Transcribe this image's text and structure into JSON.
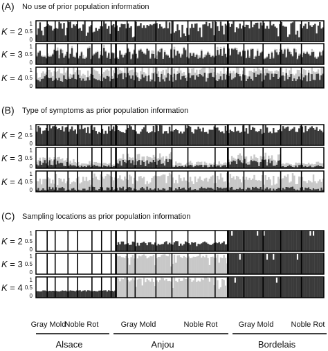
{
  "chart_data": {
    "type": "bar",
    "stacked": true,
    "colors": {
      "dark": "#3a3a3a",
      "light": "#c8c8c8",
      "white": "#ffffff",
      "frame": "#000000"
    },
    "ytick_labels": [
      "1",
      "0.5",
      "0"
    ],
    "k_prefix": "K",
    "group_labels": [
      "Gray Mold",
      "Noble Rot",
      "Gray Mold",
      "Noble Rot",
      "Gray Mold",
      "Noble Rot"
    ],
    "region_labels": [
      "Alsace",
      "Anjou",
      "Bordelais"
    ],
    "panels": [
      {
        "label": "(A)",
        "title": "No use of prior population information",
        "rows": [
          {
            "k": "= 2",
            "pattern": "mixed2",
            "seed": 11
          },
          {
            "k": "= 3",
            "pattern": "mixed3",
            "seed": 23
          },
          {
            "k": "= 4",
            "pattern": "mixed4",
            "seed": 37
          }
        ]
      },
      {
        "label": "(B)",
        "title": "Type of symptoms as prior population information",
        "rows": [
          {
            "k": "= 2",
            "pattern": "symptom2",
            "seed": 41
          },
          {
            "k": "= 3",
            "pattern": "symptom3",
            "seed": 53
          },
          {
            "k": "= 4",
            "pattern": "symptom4",
            "seed": 67
          }
        ]
      },
      {
        "label": "(C)",
        "title": "Sampling locations as prior population information",
        "rows": [
          {
            "k": "= 2",
            "pattern": "location2",
            "seed": 71
          },
          {
            "k": "= 3",
            "pattern": "location3",
            "seed": 83
          },
          {
            "k": "= 4",
            "pattern": "location4",
            "seed": 97
          }
        ]
      }
    ]
  }
}
